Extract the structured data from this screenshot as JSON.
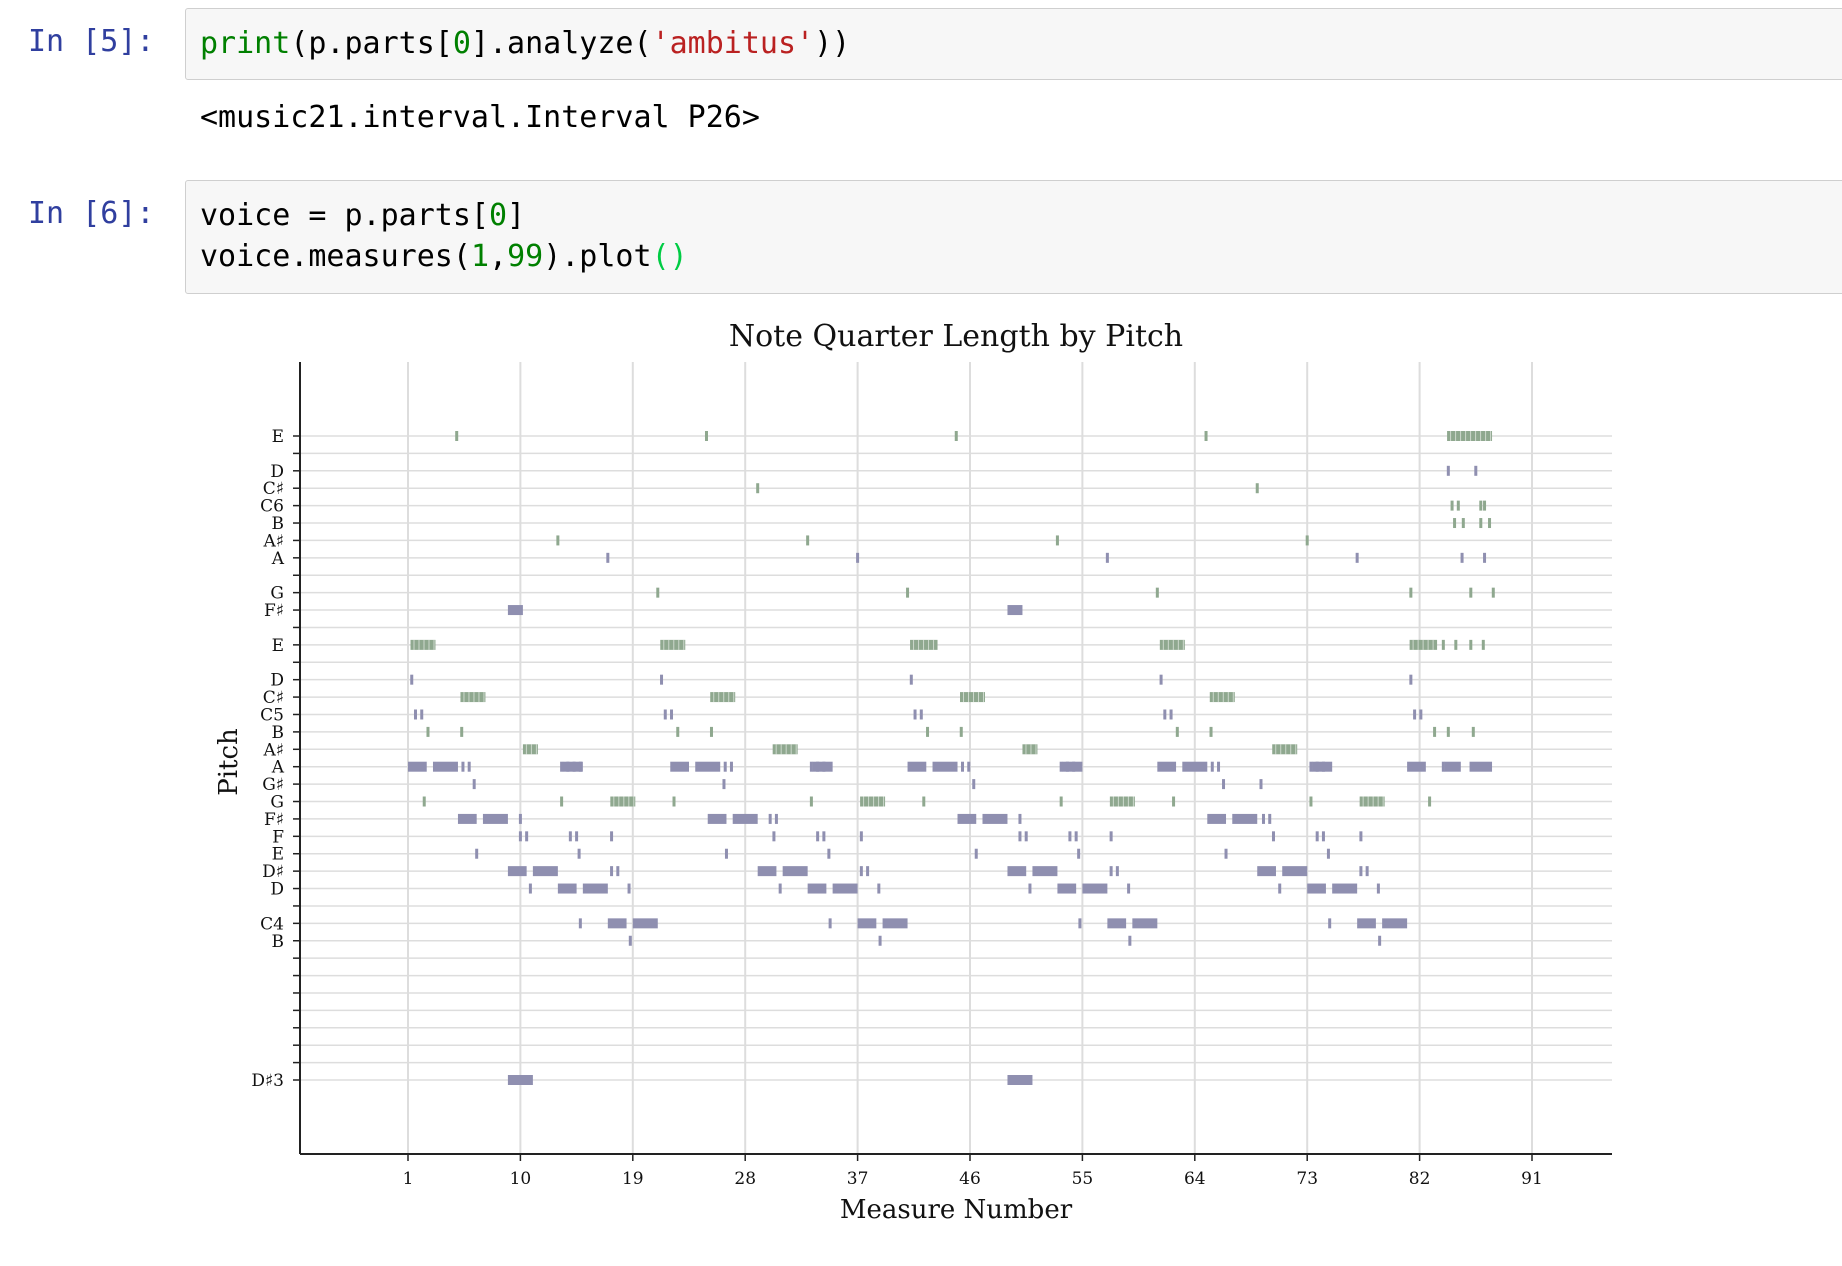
{
  "cells": [
    {
      "prompt": "In [5]:",
      "code": [
        {
          "t": "print",
          "c": "tok-fn"
        },
        {
          "t": "(p.parts[",
          "c": ""
        },
        {
          "t": "0",
          "c": "tok-num"
        },
        {
          "t": "].analyze(",
          "c": ""
        },
        {
          "t": "'ambitus'",
          "c": "tok-str"
        },
        {
          "t": "))",
          "c": ""
        }
      ],
      "output": "<music21.interval.Interval P26>"
    },
    {
      "prompt": "In [6]:",
      "line1": [
        {
          "t": "voice = p.parts[",
          "c": ""
        },
        {
          "t": "0",
          "c": "tok-num"
        },
        {
          "t": "]",
          "c": ""
        }
      ],
      "line2": [
        {
          "t": "voice.measures(",
          "c": ""
        },
        {
          "t": "1",
          "c": "tok-num"
        },
        {
          "t": ",",
          "c": ""
        },
        {
          "t": "99",
          "c": "tok-num"
        },
        {
          "t": ").plot",
          "c": ""
        },
        {
          "t": "()",
          "c": "tok-par"
        }
      ]
    }
  ],
  "chart_data": {
    "type": "scatter",
    "title": "Note Quarter Length by Pitch",
    "xlabel": "Measure Number",
    "ylabel": "Pitch",
    "x_ticks": [
      1,
      10,
      19,
      28,
      37,
      46,
      55,
      64,
      73,
      82,
      91
    ],
    "xlim": [
      -8,
      97.5
    ],
    "pitch_range_midi": [
      51,
      88
    ],
    "y_ticks": [
      {
        "label": "E",
        "midi": 88
      },
      {
        "label": "D",
        "midi": 86
      },
      {
        "label": "C♯",
        "midi": 85
      },
      {
        "label": "C6",
        "midi": 84
      },
      {
        "label": "B",
        "midi": 83
      },
      {
        "label": "A♯",
        "midi": 82
      },
      {
        "label": "A",
        "midi": 81
      },
      {
        "label": "G",
        "midi": 79
      },
      {
        "label": "F♯",
        "midi": 78
      },
      {
        "label": "E",
        "midi": 76
      },
      {
        "label": "D",
        "midi": 74
      },
      {
        "label": "C♯",
        "midi": 73
      },
      {
        "label": "C5",
        "midi": 72
      },
      {
        "label": "B",
        "midi": 71
      },
      {
        "label": "A♯",
        "midi": 70
      },
      {
        "label": "A",
        "midi": 69
      },
      {
        "label": "G♯",
        "midi": 68
      },
      {
        "label": "G",
        "midi": 67
      },
      {
        "label": "F♯",
        "midi": 66
      },
      {
        "label": "F",
        "midi": 65
      },
      {
        "label": "E",
        "midi": 64
      },
      {
        "label": "D♯",
        "midi": 63
      },
      {
        "label": "D",
        "midi": 62
      },
      {
        "label": "C4",
        "midi": 60
      },
      {
        "label": "B",
        "midi": 59
      },
      {
        "label": "D♯3",
        "midi": 51
      }
    ],
    "grid": true,
    "colors": {
      "dark_notes": "#8f8fb0",
      "light_notes": "#8fa88f",
      "grid": "#dddddd"
    },
    "notes": [
      {
        "midi": 88,
        "color": "light",
        "x": [
          4.9,
          24.9,
          44.9,
          64.9
        ]
      },
      {
        "midi": 88,
        "color": "light",
        "seg": [
          84.2,
          87.8
        ],
        "ticks": true
      },
      {
        "midi": 86,
        "color": "dark",
        "x": [
          84.3,
          86.5
        ]
      },
      {
        "midi": 85,
        "color": "light",
        "x": [
          29,
          69
        ]
      },
      {
        "midi": 84,
        "color": "light",
        "x": [
          84.6,
          85.1,
          86.9,
          87.2
        ]
      },
      {
        "midi": 83,
        "color": "light",
        "x": [
          84.8,
          85.5,
          86.9,
          87.6
        ]
      },
      {
        "midi": 82,
        "color": "light",
        "x": [
          13,
          33,
          53,
          73
        ]
      },
      {
        "midi": 81,
        "color": "dark",
        "x": [
          17,
          37,
          57,
          77,
          85.4,
          87.2
        ]
      },
      {
        "midi": 79,
        "color": "light",
        "x": [
          21,
          41,
          61,
          81.3,
          86.1,
          87.9
        ]
      },
      {
        "midi": 78,
        "color": "dark",
        "seg": [
          [
            9,
            10.2
          ],
          [
            49,
            50.2
          ]
        ]
      },
      {
        "midi": 76,
        "color": "light",
        "seg": [
          [
            1.2,
            3.2
          ],
          [
            21.2,
            23.2
          ],
          [
            41.2,
            43.4
          ],
          [
            61.2,
            63.2
          ],
          [
            81.2,
            83.4
          ]
        ],
        "ticks": true
      },
      {
        "midi": 76,
        "color": "light",
        "x": [
          83.9,
          84.9,
          86.1,
          87.1
        ]
      },
      {
        "midi": 74,
        "color": "dark",
        "x": [
          1.3,
          21.3,
          41.3,
          61.3,
          81.3
        ]
      },
      {
        "midi": 73,
        "color": "light",
        "seg": [
          [
            5.2,
            7.2
          ],
          [
            25.2,
            27.2
          ],
          [
            45.2,
            47.2
          ],
          [
            65.2,
            67.2
          ]
        ],
        "ticks": true
      },
      {
        "midi": 72,
        "color": "dark",
        "x": [
          1.6,
          2.1,
          21.6,
          22.1,
          41.6,
          42.1,
          61.6,
          62.1,
          81.6,
          82.1
        ]
      },
      {
        "midi": 71,
        "color": "light",
        "x": [
          2.6,
          5.3,
          22.6,
          25.3,
          42.6,
          45.3,
          62.6,
          65.3,
          83.2,
          84.3,
          86.3
        ]
      },
      {
        "midi": 70,
        "color": "light",
        "seg": [
          [
            10.2,
            11.4
          ],
          [
            30.2,
            32.2
          ],
          [
            50.2,
            51.4
          ],
          [
            70.2,
            72.2
          ]
        ],
        "ticks": true
      },
      {
        "midi": 69,
        "color": "dark",
        "seg": [
          [
            1,
            2.5
          ],
          [
            3,
            5
          ],
          [
            22,
            23.5
          ],
          [
            24,
            26
          ],
          [
            41,
            42.5
          ],
          [
            43,
            45
          ],
          [
            61,
            62.5
          ],
          [
            63,
            65
          ],
          [
            81,
            82.5
          ],
          [
            84,
            85.3
          ],
          [
            86,
            87.8
          ]
        ]
      },
      {
        "midi": 69,
        "color": "dark",
        "x": [
          5.4,
          5.9,
          13.3,
          13.8,
          14.3,
          14.8,
          26.4,
          26.9,
          33.3,
          33.8,
          34.3,
          45.4,
          45.9,
          53.3,
          53.8,
          54.3,
          65.4,
          65.9,
          73.3,
          73.8,
          74.3,
          83.9
        ]
      },
      {
        "midi": 69,
        "color": "dark",
        "seg": [
          [
            13.4,
            15
          ],
          [
            33.4,
            35
          ],
          [
            53.4,
            55
          ],
          [
            73.4,
            75
          ]
        ]
      },
      {
        "midi": 68,
        "color": "dark",
        "x": [
          6.3,
          26.3,
          46.3,
          66.3,
          69.3
        ]
      },
      {
        "midi": 67,
        "color": "light",
        "x": [
          2.3,
          13.3,
          22.3,
          33.3,
          42.3,
          53.3,
          62.3,
          73.3,
          82.8
        ]
      },
      {
        "midi": 67,
        "color": "light",
        "seg": [
          [
            17.2,
            19.2
          ],
          [
            37.2,
            39.2
          ],
          [
            57.2,
            59.2
          ],
          [
            77.2,
            79.2
          ]
        ],
        "ticks": true
      },
      {
        "midi": 66,
        "color": "dark",
        "seg": [
          [
            5,
            6.5
          ],
          [
            7,
            9
          ],
          [
            25,
            26.5
          ],
          [
            27,
            29
          ],
          [
            45,
            46.5
          ],
          [
            47,
            49
          ],
          [
            65,
            66.5
          ],
          [
            67,
            69
          ]
        ]
      },
      {
        "midi": 66,
        "color": "dark",
        "x": [
          10,
          30,
          30.5,
          50,
          69.5,
          70
        ]
      },
      {
        "midi": 65,
        "color": "dark",
        "x": [
          10,
          10.5,
          14,
          14.5,
          17.3,
          30.3,
          33.8,
          34.3,
          37.3,
          50,
          50.5,
          54,
          54.5,
          57.3,
          70.3,
          73.8,
          74.3,
          77.3
        ]
      },
      {
        "midi": 64,
        "color": "dark",
        "x": [
          6.5,
          14.7,
          26.5,
          34.7,
          46.5,
          54.7,
          66.5,
          74.7
        ]
      },
      {
        "midi": 63,
        "color": "dark",
        "seg": [
          [
            9,
            10.5
          ],
          [
            11,
            13
          ],
          [
            29,
            30.5
          ],
          [
            31,
            33
          ],
          [
            49,
            50.5
          ],
          [
            51,
            53
          ],
          [
            69,
            70.5
          ],
          [
            71,
            73
          ]
        ]
      },
      {
        "midi": 63,
        "color": "dark",
        "x": [
          17.3,
          17.8,
          37.3,
          37.8,
          57.3,
          57.8,
          77.3,
          77.8
        ]
      },
      {
        "midi": 62,
        "color": "dark",
        "seg": [
          [
            13,
            14.5
          ],
          [
            15,
            17
          ],
          [
            33,
            34.5
          ],
          [
            35,
            37
          ],
          [
            53,
            54.5
          ],
          [
            55,
            57
          ],
          [
            73,
            74.5
          ],
          [
            75,
            77
          ]
        ]
      },
      {
        "midi": 62,
        "color": "dark",
        "x": [
          10.8,
          18.7,
          30.8,
          38.7,
          50.8,
          58.7,
          70.8,
          78.7
        ]
      },
      {
        "midi": 60,
        "color": "dark",
        "seg": [
          [
            17,
            18.5
          ],
          [
            19,
            21
          ],
          [
            37,
            38.5
          ],
          [
            39,
            41
          ],
          [
            57,
            58.5
          ],
          [
            59,
            61
          ],
          [
            77,
            78.5
          ],
          [
            79,
            81
          ]
        ]
      },
      {
        "midi": 60,
        "color": "dark",
        "x": [
          14.8,
          34.8,
          54.8,
          74.8
        ]
      },
      {
        "midi": 59,
        "color": "dark",
        "x": [
          18.8,
          38.8,
          58.8,
          78.8
        ]
      },
      {
        "midi": 51,
        "color": "dark",
        "seg": [
          [
            9,
            11
          ],
          [
            49,
            51
          ]
        ]
      }
    ]
  }
}
